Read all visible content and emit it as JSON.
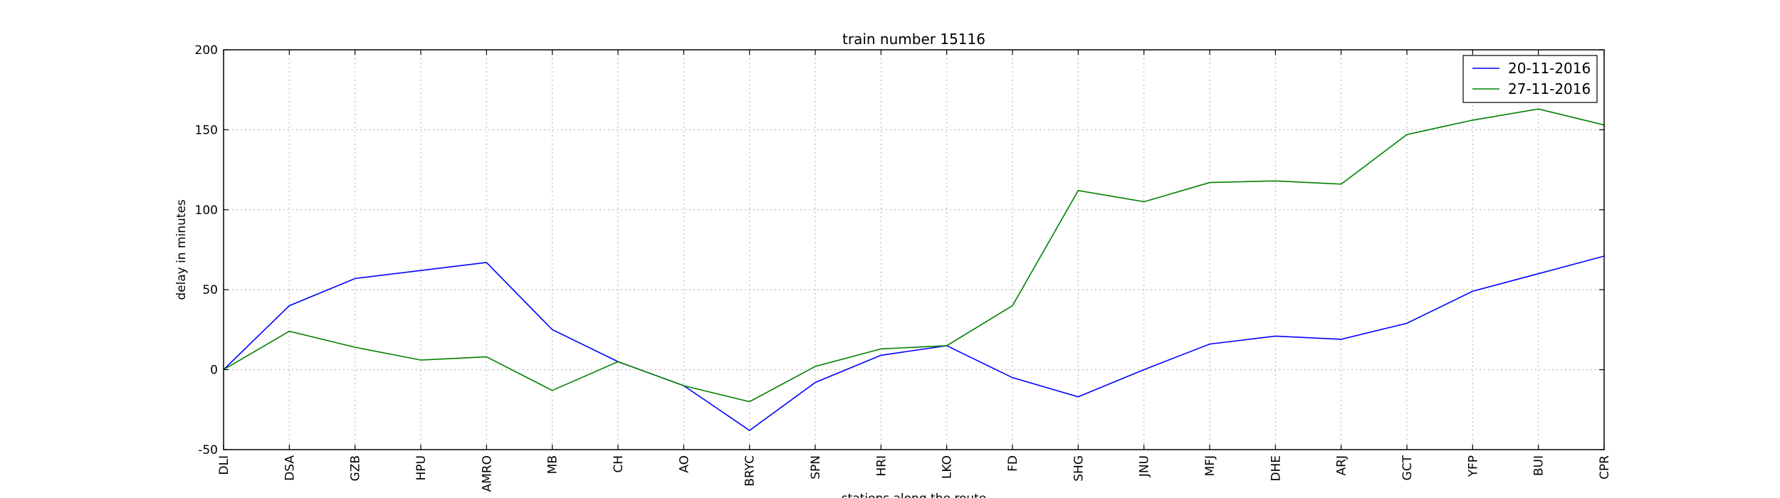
{
  "chart_data": {
    "type": "line",
    "title": "train number 15116",
    "xlabel": "stations along the route",
    "ylabel": "delay in minutes",
    "ylim": [
      -50,
      200
    ],
    "yticks": [
      -50,
      0,
      50,
      100,
      150,
      200
    ],
    "grid": true,
    "legend_position": "top-right",
    "categories": [
      "DLI",
      "DSA",
      "GZB",
      "HPU",
      "AMRO",
      "MB",
      "CH",
      "AO",
      "BRYC",
      "SPN",
      "HRI",
      "LKO",
      "FD",
      "SHG",
      "JNU",
      "MFJ",
      "DHE",
      "ARJ",
      "GCT",
      "YFP",
      "BUI",
      "CPR"
    ],
    "series": [
      {
        "name": "20-11-2016",
        "color": "#0000ff",
        "values": [
          0,
          40,
          57,
          62,
          67,
          25,
          5,
          -10,
          -38,
          -8,
          9,
          15,
          -5,
          -17,
          0,
          16,
          21,
          19,
          29,
          49,
          60,
          71
        ]
      },
      {
        "name": "27-11-2016",
        "color": "#008000",
        "values": [
          0,
          24,
          14,
          6,
          8,
          -13,
          5,
          -10,
          -20,
          2,
          13,
          15,
          40,
          112,
          105,
          117,
          118,
          116,
          147,
          156,
          163,
          153
        ]
      }
    ]
  }
}
